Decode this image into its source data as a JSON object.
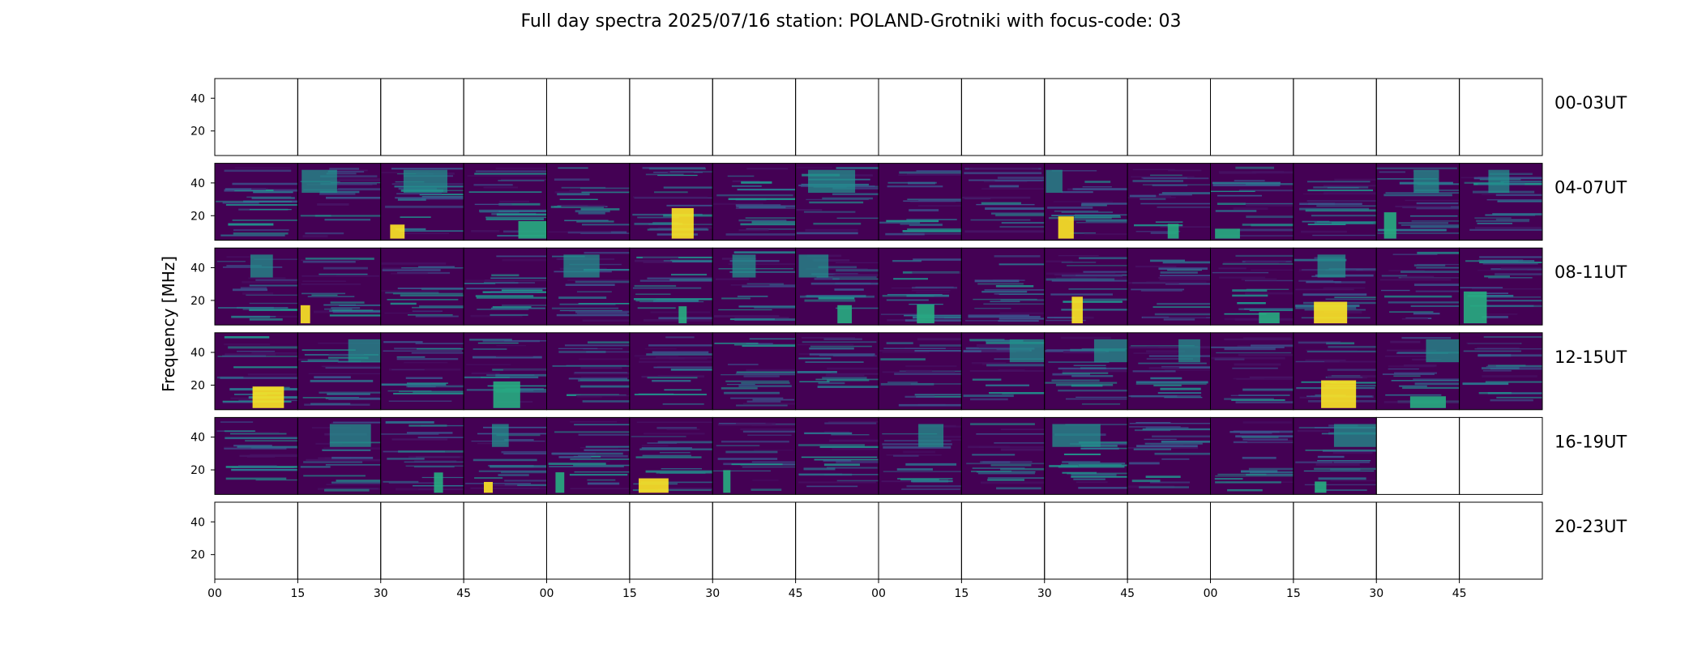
{
  "title": "Full day spectra 2025/07/16 station: POLAND-Grotniki with focus-code: 03",
  "chart_data": {
    "type": "heatmap",
    "colormap": "viridis",
    "ylabel": "Frequency [MHz]",
    "ylim": [
      5,
      52
    ],
    "y_ticks": [
      20,
      40
    ],
    "x_tick_labels": [
      "00",
      "15",
      "30",
      "45",
      "00",
      "15",
      "30",
      "45",
      "00",
      "15",
      "30",
      "45",
      "00",
      "15",
      "30",
      "45"
    ],
    "row_labels": [
      "00-03UT",
      "04-07UT",
      "08-11UT",
      "12-15UT",
      "16-19UT",
      "20-23UT"
    ],
    "panels_per_row": 16,
    "panel_minutes": 15,
    "rows": [
      {
        "label": "00-03UT",
        "data": [
          0,
          0,
          0,
          0,
          0,
          0,
          0,
          0,
          0,
          0,
          0,
          0,
          0,
          0,
          0,
          0
        ]
      },
      {
        "label": "04-07UT",
        "data": [
          1,
          1,
          1,
          1,
          1,
          1,
          1,
          1,
          1,
          1,
          1,
          1,
          1,
          1,
          1,
          1
        ]
      },
      {
        "label": "08-11UT",
        "data": [
          1,
          1,
          1,
          1,
          1,
          1,
          1,
          1,
          1,
          1,
          1,
          1,
          1,
          1,
          1,
          1
        ]
      },
      {
        "label": "12-15UT",
        "data": [
          1,
          1,
          1,
          1,
          1,
          1,
          1,
          1,
          1,
          1,
          1,
          1,
          1,
          1,
          1,
          1
        ]
      },
      {
        "label": "16-19UT",
        "data": [
          1,
          1,
          1,
          1,
          1,
          1,
          1,
          1,
          1,
          1,
          1,
          1,
          1,
          1,
          0,
          0
        ]
      },
      {
        "label": "20-23UT",
        "data": [
          0,
          0,
          0,
          0,
          0,
          0,
          0,
          0,
          0,
          0,
          0,
          0,
          0,
          0,
          0,
          0
        ]
      }
    ]
  }
}
